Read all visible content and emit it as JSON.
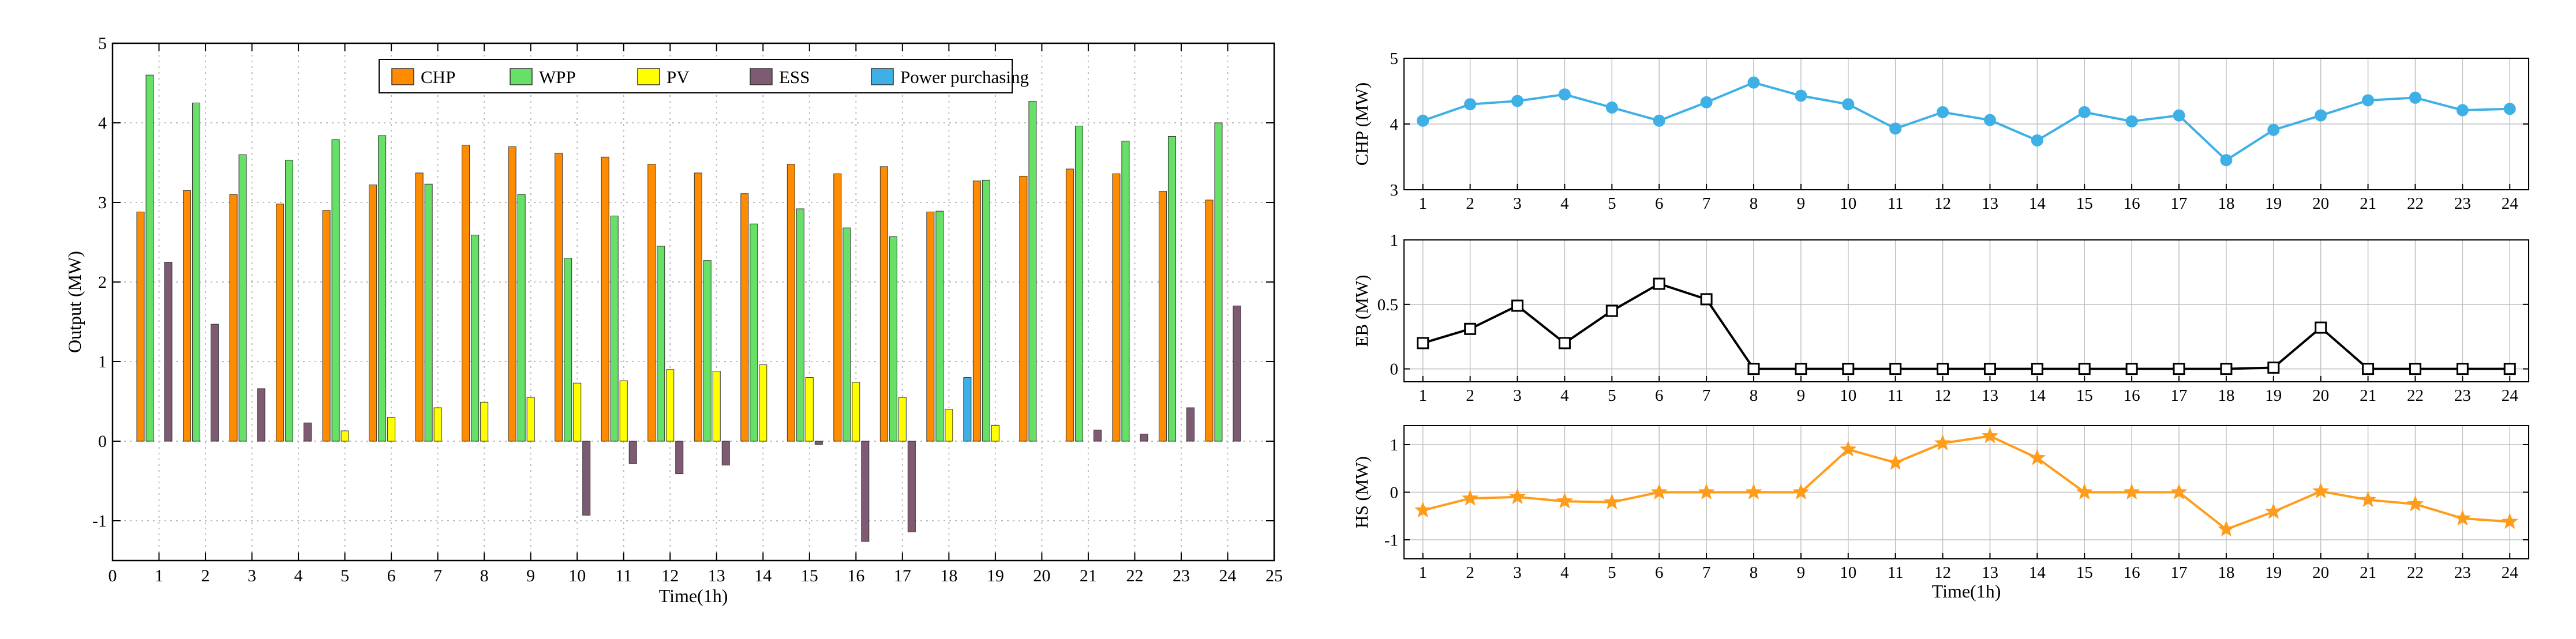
{
  "chart_data": [
    {
      "type": "bar",
      "xlabel": "Time(1h)",
      "ylabel": "Output (MW)",
      "xlim": [
        0,
        25
      ],
      "ylim": [
        -1.5,
        5
      ],
      "xticks": [
        "0",
        "1",
        "2",
        "3",
        "4",
        "5",
        "6",
        "7",
        "8",
        "9",
        "10",
        "11",
        "12",
        "13",
        "14",
        "15",
        "16",
        "17",
        "18",
        "19",
        "20",
        "21",
        "22",
        "23",
        "24",
        "25"
      ],
      "yticks": [
        "-1",
        "0",
        "1",
        "2",
        "3",
        "4",
        "5"
      ],
      "legend": [
        "CHP",
        "WPP",
        "PV",
        "ESS",
        "Power purchasing"
      ],
      "legend_position": "top-right",
      "categories": [
        "1",
        "2",
        "3",
        "4",
        "5",
        "6",
        "7",
        "8",
        "9",
        "10",
        "11",
        "12",
        "13",
        "14",
        "15",
        "16",
        "17",
        "18",
        "19",
        "20",
        "21",
        "22",
        "23",
        "24"
      ],
      "series": [
        {
          "name": "CHP",
          "color": "#FF8C00",
          "values": [
            2.88,
            3.15,
            3.1,
            2.98,
            2.9,
            3.22,
            3.37,
            3.72,
            3.7,
            3.62,
            3.57,
            3.48,
            3.37,
            3.11,
            3.48,
            3.36,
            3.45,
            2.88,
            3.27,
            3.33,
            3.42,
            3.36,
            3.14,
            3.03
          ]
        },
        {
          "name": "WPP",
          "color": "#66E066",
          "values": [
            4.6,
            4.25,
            3.6,
            3.53,
            3.79,
            3.84,
            3.23,
            2.59,
            3.1,
            2.3,
            2.83,
            2.45,
            2.27,
            2.73,
            2.92,
            2.68,
            2.57,
            2.89,
            3.28,
            4.27,
            3.96,
            3.77,
            3.83,
            4.0
          ]
        },
        {
          "name": "PV",
          "color": "#FFFF00",
          "values": [
            0,
            0,
            0,
            0,
            0.13,
            0.3,
            0.42,
            0.49,
            0.55,
            0.73,
            0.76,
            0.9,
            0.88,
            0.96,
            0.8,
            0.74,
            0.55,
            0.4,
            0.2,
            0,
            0,
            0,
            0,
            0
          ]
        },
        {
          "name": "ESS",
          "color": "#7E5A73",
          "values": [
            2.25,
            1.47,
            0.66,
            0.23,
            0,
            0,
            0,
            0,
            0,
            -0.93,
            -0.28,
            -0.41,
            -0.3,
            0,
            -0.04,
            -1.26,
            -1.14,
            0,
            0,
            0,
            0.14,
            0.09,
            0.42,
            1.7
          ]
        },
        {
          "name": "Power purchasing",
          "color": "#3FB0E6",
          "values": [
            0,
            0,
            0,
            0,
            0,
            0,
            0,
            0,
            0,
            0,
            0,
            0,
            0,
            0,
            0,
            0,
            0,
            0.8,
            0,
            0,
            0,
            0,
            0,
            0
          ]
        }
      ]
    },
    {
      "type": "line",
      "ylabel": "CHP (MW)",
      "ylim": [
        3,
        5
      ],
      "yticks": [
        "3",
        "4",
        "5"
      ],
      "color": "#3FB0E6",
      "marker": "circle",
      "x": [
        "1",
        "2",
        "3",
        "4",
        "5",
        "6",
        "7",
        "8",
        "9",
        "10",
        "11",
        "12",
        "13",
        "14",
        "15",
        "16",
        "17",
        "18",
        "19",
        "20",
        "21",
        "22",
        "23",
        "24"
      ],
      "values": [
        4.05,
        4.3,
        4.35,
        4.45,
        4.25,
        4.05,
        4.33,
        4.63,
        4.43,
        4.3,
        3.93,
        4.18,
        4.06,
        3.75,
        4.18,
        4.04,
        4.13,
        3.45,
        3.91,
        4.13,
        4.36,
        4.4,
        4.21,
        4.23
      ]
    },
    {
      "type": "line",
      "ylabel": "EB (MW)",
      "ylim": [
        -0.1,
        1
      ],
      "yticks": [
        "0",
        "0.5",
        "1"
      ],
      "color": "#000000",
      "marker": "square",
      "x": [
        "1",
        "2",
        "3",
        "4",
        "5",
        "6",
        "7",
        "8",
        "9",
        "10",
        "11",
        "12",
        "13",
        "14",
        "15",
        "16",
        "17",
        "18",
        "19",
        "20",
        "21",
        "22",
        "23",
        "24"
      ],
      "values": [
        0.2,
        0.31,
        0.49,
        0.2,
        0.45,
        0.66,
        0.54,
        0,
        0,
        0,
        0,
        0,
        0,
        0,
        0,
        0,
        0,
        0,
        0.01,
        0.32,
        0,
        0,
        0,
        0
      ]
    },
    {
      "type": "line",
      "ylabel": "HS (MW)",
      "xlabel": "Time(1h)",
      "ylim": [
        -1.4,
        1.4
      ],
      "yticks": [
        "-1",
        "0",
        "1"
      ],
      "color": "#FF9C1A",
      "marker": "star",
      "x": [
        "1",
        "2",
        "3",
        "4",
        "5",
        "6",
        "7",
        "8",
        "9",
        "10",
        "11",
        "12",
        "13",
        "14",
        "15",
        "16",
        "17",
        "18",
        "19",
        "20",
        "21",
        "22",
        "23",
        "24"
      ],
      "values": [
        -0.38,
        -0.13,
        -0.1,
        -0.19,
        -0.21,
        0,
        0,
        0,
        0,
        0.9,
        0.62,
        1.03,
        1.18,
        0.72,
        0,
        0,
        0,
        -0.78,
        -0.41,
        0.02,
        -0.16,
        -0.25,
        -0.55,
        -0.62
      ]
    }
  ]
}
